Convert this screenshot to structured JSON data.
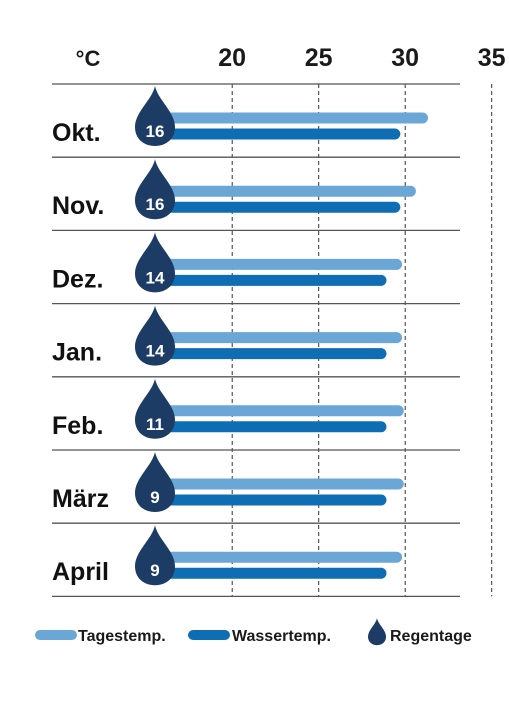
{
  "chart_data": {
    "type": "bar",
    "orientation": "horizontal",
    "x_unit": "°C",
    "xlim": [
      16,
      35
    ],
    "x_ticks": [
      20,
      25,
      30,
      35
    ],
    "grid": "vertical dashed",
    "categories": [
      "Okt.",
      "Nov.",
      "Dez.",
      "Jan.",
      "Feb.",
      "März",
      "April"
    ],
    "series": [
      {
        "name": "Tagestemp.",
        "color": "#6aa6d6",
        "values": [
          31,
          30.3,
          29.5,
          29.5,
          29.6,
          29.6,
          29.5
        ]
      },
      {
        "name": "Wassertemp.",
        "color": "#0f6eb3",
        "values": [
          29.4,
          29.4,
          28.6,
          28.6,
          28.6,
          28.6,
          28.6
        ]
      }
    ],
    "rain_days": {
      "name": "Regentage",
      "color": "#1c3c66",
      "values": [
        16,
        16,
        14,
        14,
        11,
        9,
        9
      ]
    },
    "legend_position": "bottom"
  }
}
